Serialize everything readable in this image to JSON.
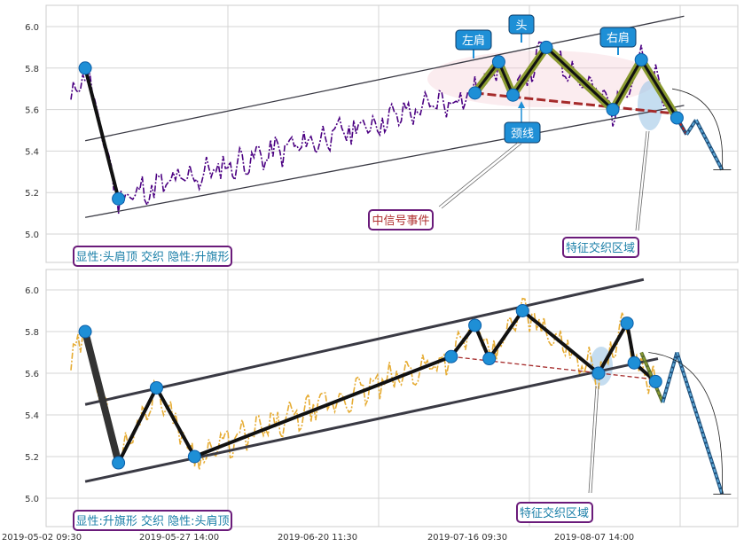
{
  "chart_data": [
    {
      "type": "line",
      "panel": "top",
      "ylim": [
        4.95,
        6.1
      ],
      "y_ticks": [
        "5.0",
        "5.2",
        "5.4",
        "5.6",
        "5.8",
        "6.0"
      ],
      "grid": true,
      "price_color": "#4b0082",
      "annotations": {
        "pattern_label": "显性:头肩顶 交织 隐性:升旗形",
        "signal_event": "中信号事件",
        "feature_zone": "特征交织区域",
        "neckline": "颈线",
        "left_shoulder": "左肩",
        "head": "头",
        "right_shoulder": "右肩"
      },
      "pivots": [
        {
          "t": 6,
          "y": 5.8
        },
        {
          "t": 20,
          "y": 5.17
        },
        {
          "t": 170,
          "y": 5.68
        },
        {
          "t": 180,
          "y": 5.83
        },
        {
          "t": 186,
          "y": 5.67
        },
        {
          "t": 200,
          "y": 5.9
        },
        {
          "t": 228,
          "y": 5.6
        },
        {
          "t": 240,
          "y": 5.84
        },
        {
          "t": 255,
          "y": 5.56
        }
      ],
      "channel_upper": [
        [
          6,
          5.45
        ],
        [
          258,
          6.05
        ]
      ],
      "channel_lower": [
        [
          6,
          5.08
        ],
        [
          258,
          5.62
        ]
      ],
      "neckline_line": [
        [
          170,
          5.68
        ],
        [
          255,
          5.58
        ]
      ],
      "projection": [
        [
          255,
          5.56
        ],
        [
          259,
          5.48
        ],
        [
          263,
          5.55
        ],
        [
          274,
          5.31
        ]
      ]
    },
    {
      "type": "line",
      "panel": "bottom",
      "ylim": [
        4.95,
        6.1
      ],
      "y_ticks": [
        "5.0",
        "5.2",
        "5.4",
        "5.6",
        "5.8",
        "6.0"
      ],
      "x_ticks": [
        "2019-05-02 09:30",
        "2019-05-27 14:00",
        "2019-06-20 11:30",
        "2019-07-16 09:30",
        "2019-08-07 14:00"
      ],
      "grid": true,
      "price_color": "#e6ac33",
      "annotations": {
        "pattern_label": "显性:升旗形 交织 隐性:头肩顶",
        "feature_zone": "特征交织区域"
      },
      "pivots": [
        {
          "t": 6,
          "y": 5.8
        },
        {
          "t": 20,
          "y": 5.17
        },
        {
          "t": 36,
          "y": 5.53
        },
        {
          "t": 52,
          "y": 5.2
        },
        {
          "t": 160,
          "y": 5.68
        },
        {
          "t": 170,
          "y": 5.83
        },
        {
          "t": 176,
          "y": 5.67
        },
        {
          "t": 190,
          "y": 5.9
        },
        {
          "t": 222,
          "y": 5.6
        },
        {
          "t": 234,
          "y": 5.84
        },
        {
          "t": 237,
          "y": 5.65
        },
        {
          "t": 246,
          "y": 5.56
        }
      ],
      "channel_upper": [
        [
          6,
          5.45
        ],
        [
          241,
          6.05
        ]
      ],
      "channel_lower": [
        [
          6,
          5.08
        ],
        [
          247,
          5.67
        ]
      ],
      "neckline_line": [
        [
          160,
          5.68
        ],
        [
          246,
          5.57
        ]
      ],
      "projection": [
        [
          240,
          5.7
        ],
        [
          249,
          5.46
        ],
        [
          255,
          5.7
        ],
        [
          274,
          5.02
        ]
      ]
    }
  ]
}
